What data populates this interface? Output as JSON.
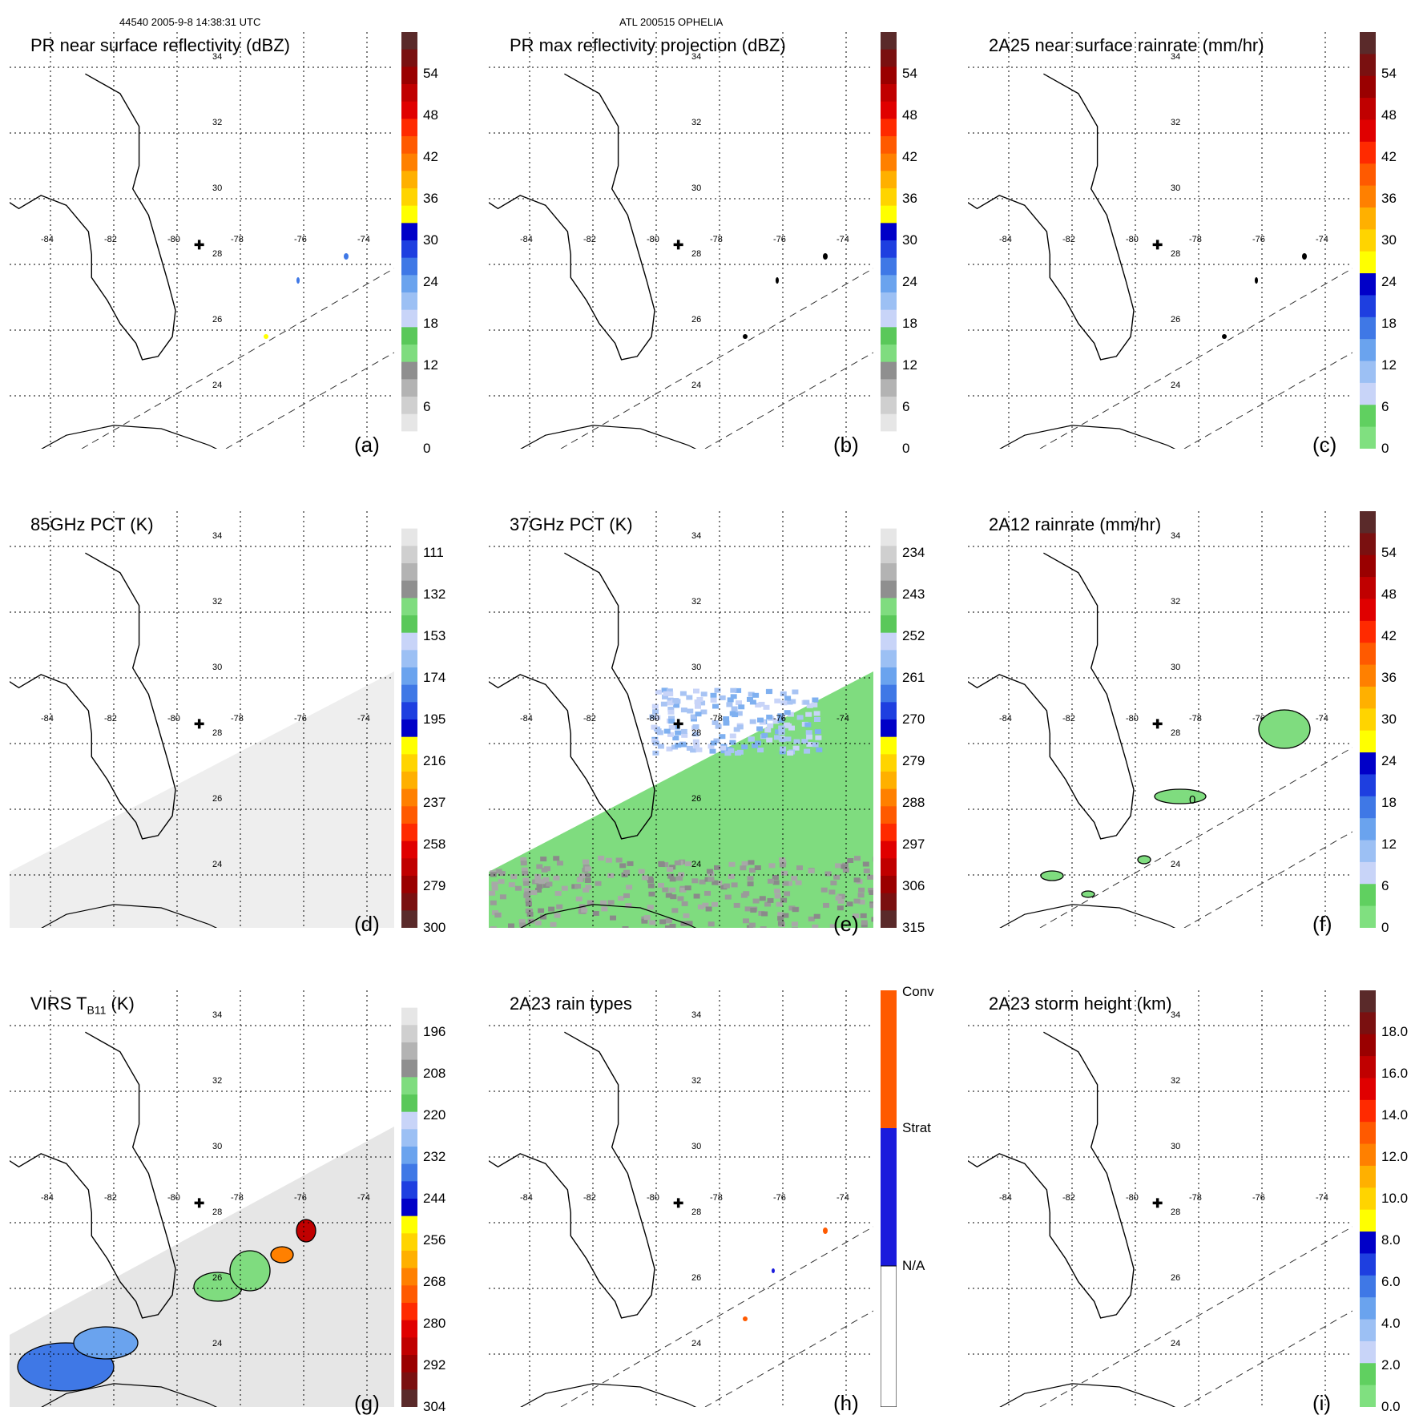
{
  "header": {
    "left": "44540 2005-9-8 14:38:31 UTC",
    "center": "ATL 200515 OPHELIA"
  },
  "map": {
    "lat_labels": [
      "34",
      "32",
      "30",
      "28",
      "26",
      "24"
    ],
    "lon_labels": [
      "-84",
      "-82",
      "-80",
      "-78",
      "-76",
      "-74"
    ],
    "storm_marker": "plus-icon"
  },
  "panels": [
    {
      "id": "a",
      "label": "(a)",
      "title": "PR near surface reflectivity (dBZ)",
      "colorbar": {
        "labels": [
          "54",
          "48",
          "42",
          "36",
          "30",
          "24",
          "18",
          "12",
          "6",
          "0"
        ]
      }
    },
    {
      "id": "b",
      "label": "(b)",
      "title": "PR max reflectivity projection (dBZ)",
      "colorbar": {
        "labels": [
          "54",
          "48",
          "42",
          "36",
          "30",
          "24",
          "18",
          "12",
          "6",
          "0"
        ]
      }
    },
    {
      "id": "c",
      "label": "(c)",
      "title": "2A25 near surface rainrate (mm/hr)",
      "colorbar": {
        "labels": [
          "54",
          "48",
          "42",
          "36",
          "30",
          "24",
          "18",
          "12",
          "6",
          "0"
        ]
      }
    },
    {
      "id": "d",
      "label": "(d)",
      "title": "85GHz PCT (K)",
      "colorbar": {
        "labels": [
          "111",
          "132",
          "153",
          "174",
          "195",
          "216",
          "237",
          "258",
          "279",
          "300"
        ]
      }
    },
    {
      "id": "e",
      "label": "(e)",
      "title": "37GHz PCT (K)",
      "colorbar": {
        "labels": [
          "234",
          "243",
          "252",
          "261",
          "270",
          "279",
          "288",
          "297",
          "306",
          "315"
        ]
      }
    },
    {
      "id": "f",
      "label": "(f)",
      "title": "2A12 rainrate (mm/hr)",
      "contour_label": "0",
      "colorbar": {
        "labels": [
          "54",
          "48",
          "42",
          "36",
          "30",
          "24",
          "18",
          "12",
          "6",
          "0"
        ]
      }
    },
    {
      "id": "g",
      "label": "(g)",
      "title_main": "VIRS T",
      "title_sub": "B11",
      "title_tail": " (K)",
      "colorbar": {
        "labels": [
          "196",
          "208",
          "220",
          "232",
          "244",
          "256",
          "268",
          "280",
          "292",
          "304"
        ]
      }
    },
    {
      "id": "h",
      "label": "(h)",
      "title": "2A23 rain types",
      "colorbar": {
        "labels": [
          "Conv",
          "Strat",
          "N/A"
        ]
      }
    },
    {
      "id": "i",
      "label": "(i)",
      "title": "2A23 storm height (km)",
      "colorbar": {
        "labels": [
          "18.0",
          "16.0",
          "14.0",
          "12.0",
          "10.0",
          "8.0",
          "6.0",
          "4.0",
          "2.0",
          "0.0"
        ]
      }
    }
  ],
  "colors": {
    "dbz_scale": [
      "#ffffff",
      "#e6e6e6",
      "#cfcfcf",
      "#b3b3b3",
      "#8f8f8f",
      "#7fdc7f",
      "#5ac85a",
      "#c8d4f8",
      "#9cc0f4",
      "#6aa3ee",
      "#3f78e6",
      "#1e3fe0",
      "#0000c8",
      "#ffff00",
      "#ffd400",
      "#ffb000",
      "#ff8000",
      "#ff5a00",
      "#ff2a00",
      "#e00000",
      "#c00000",
      "#9a0000",
      "#7a1010",
      "#5a2a2a"
    ],
    "rr_scale": [
      "#80e080",
      "#60d060",
      "#c8d4f8",
      "#9cc0f4",
      "#6aa3ee",
      "#3f78e6",
      "#1e3fe0",
      "#0000c8",
      "#ffff00",
      "#ffd400",
      "#ffb000",
      "#ff8000",
      "#ff5a00",
      "#ff2a00",
      "#e00000",
      "#c00000",
      "#9a0000",
      "#7a1010",
      "#5a2a2a"
    ],
    "gray_swath": "#eeeeee",
    "green": "#7fdc7f",
    "blue": "#7fb0f0",
    "rain_conv": "#ff5a00",
    "rain_strat": "#1a1adc"
  }
}
